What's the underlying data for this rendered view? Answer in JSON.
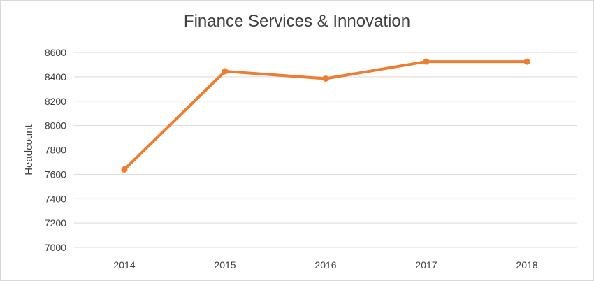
{
  "chart_data": {
    "type": "line",
    "title": "Finance Services & Innovation",
    "xlabel": "",
    "ylabel": "Headcount",
    "categories": [
      "2014",
      "2015",
      "2016",
      "2017",
      "2018"
    ],
    "series": [
      {
        "values": [
          7640,
          8445,
          8385,
          8525,
          8525
        ]
      }
    ],
    "ylim": [
      7000,
      8600
    ],
    "yticks": [
      7000,
      7200,
      7400,
      7600,
      7800,
      8000,
      8200,
      8400,
      8600
    ],
    "grid": true,
    "legend": "none",
    "colors": {
      "line": "#ED7D31",
      "grid": "#d9d9d9",
      "text": "#404040"
    }
  }
}
